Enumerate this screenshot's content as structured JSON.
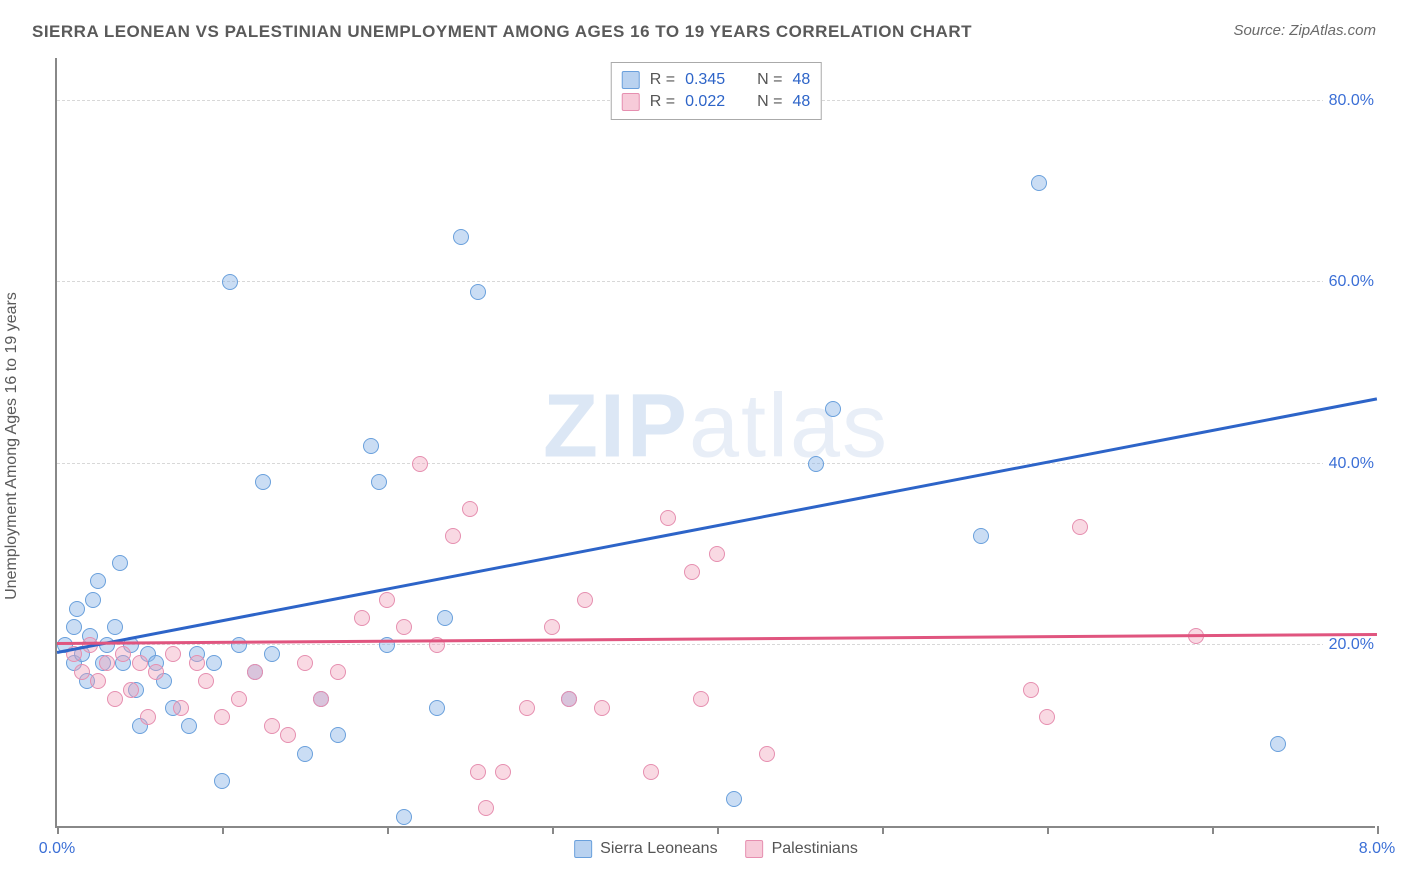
{
  "title": "SIERRA LEONEAN VS PALESTINIAN UNEMPLOYMENT AMONG AGES 16 TO 19 YEARS CORRELATION CHART",
  "source": "Source: ZipAtlas.com",
  "ylabel": "Unemployment Among Ages 16 to 19 years",
  "watermark": {
    "bold": "ZIP",
    "rest": "atlas"
  },
  "chart": {
    "type": "scatter",
    "xlim": [
      0,
      8
    ],
    "ylim": [
      0,
      85
    ],
    "xticks": [
      0,
      1,
      2,
      3,
      4,
      5,
      6,
      7,
      8
    ],
    "xtick_labels_shown": {
      "0": "0.0%",
      "8": "8.0%"
    },
    "yticks": [
      20,
      40,
      60,
      80
    ],
    "ytick_labels": [
      "20.0%",
      "40.0%",
      "60.0%",
      "80.0%"
    ],
    "grid_color": "#d8d8d8",
    "axis_color": "#888888",
    "background_color": "#ffffff",
    "marker_radius": 8,
    "marker_opacity": 0.45
  },
  "series": [
    {
      "name": "Sierra Leoneans",
      "color_fill": "#8ab4e6",
      "color_stroke": "#6aa0dc",
      "trend_color": "#2d64c8",
      "R": "0.345",
      "N": "48",
      "trend": {
        "x0": 0,
        "y0": 19,
        "x1": 8,
        "y1": 47
      },
      "points": [
        [
          0.05,
          20
        ],
        [
          0.1,
          22
        ],
        [
          0.1,
          18
        ],
        [
          0.12,
          24
        ],
        [
          0.15,
          19
        ],
        [
          0.18,
          16
        ],
        [
          0.2,
          21
        ],
        [
          0.22,
          25
        ],
        [
          0.25,
          27
        ],
        [
          0.28,
          18
        ],
        [
          0.3,
          20
        ],
        [
          0.35,
          22
        ],
        [
          0.38,
          29
        ],
        [
          0.4,
          18
        ],
        [
          0.45,
          20
        ],
        [
          0.48,
          15
        ],
        [
          0.5,
          11
        ],
        [
          0.55,
          19
        ],
        [
          0.6,
          18
        ],
        [
          0.65,
          16
        ],
        [
          0.7,
          13
        ],
        [
          0.8,
          11
        ],
        [
          0.85,
          19
        ],
        [
          0.95,
          18
        ],
        [
          1.0,
          5
        ],
        [
          1.05,
          60
        ],
        [
          1.1,
          20
        ],
        [
          1.2,
          17
        ],
        [
          1.25,
          38
        ],
        [
          1.3,
          19
        ],
        [
          1.5,
          8
        ],
        [
          1.6,
          14
        ],
        [
          1.7,
          10
        ],
        [
          1.9,
          42
        ],
        [
          1.95,
          38
        ],
        [
          2.0,
          20
        ],
        [
          2.1,
          1
        ],
        [
          2.3,
          13
        ],
        [
          2.35,
          23
        ],
        [
          2.45,
          65
        ],
        [
          2.55,
          59
        ],
        [
          3.1,
          14
        ],
        [
          4.1,
          3
        ],
        [
          4.6,
          40
        ],
        [
          4.7,
          46
        ],
        [
          5.6,
          32
        ],
        [
          5.95,
          71
        ],
        [
          7.4,
          9
        ]
      ]
    },
    {
      "name": "Palestinians",
      "color_fill": "#f0a0b9",
      "color_stroke": "#e68fb0",
      "trend_color": "#e0557f",
      "R": "0.022",
      "N": "48",
      "trend": {
        "x0": 0,
        "y0": 20,
        "x1": 8,
        "y1": 21
      },
      "points": [
        [
          0.1,
          19
        ],
        [
          0.15,
          17
        ],
        [
          0.2,
          20
        ],
        [
          0.25,
          16
        ],
        [
          0.3,
          18
        ],
        [
          0.35,
          14
        ],
        [
          0.4,
          19
        ],
        [
          0.45,
          15
        ],
        [
          0.5,
          18
        ],
        [
          0.55,
          12
        ],
        [
          0.6,
          17
        ],
        [
          0.7,
          19
        ],
        [
          0.75,
          13
        ],
        [
          0.85,
          18
        ],
        [
          0.9,
          16
        ],
        [
          1.0,
          12
        ],
        [
          1.1,
          14
        ],
        [
          1.2,
          17
        ],
        [
          1.3,
          11
        ],
        [
          1.4,
          10
        ],
        [
          1.5,
          18
        ],
        [
          1.6,
          14
        ],
        [
          1.7,
          17
        ],
        [
          1.85,
          23
        ],
        [
          2.0,
          25
        ],
        [
          2.1,
          22
        ],
        [
          2.2,
          40
        ],
        [
          2.3,
          20
        ],
        [
          2.4,
          32
        ],
        [
          2.5,
          35
        ],
        [
          2.55,
          6
        ],
        [
          2.6,
          2
        ],
        [
          2.7,
          6
        ],
        [
          2.85,
          13
        ],
        [
          3.0,
          22
        ],
        [
          3.1,
          14
        ],
        [
          3.2,
          25
        ],
        [
          3.3,
          13
        ],
        [
          3.6,
          6
        ],
        [
          3.7,
          34
        ],
        [
          3.85,
          28
        ],
        [
          3.9,
          14
        ],
        [
          4.0,
          30
        ],
        [
          4.3,
          8
        ],
        [
          5.9,
          15
        ],
        [
          6.0,
          12
        ],
        [
          6.2,
          33
        ],
        [
          6.9,
          21
        ]
      ]
    }
  ],
  "legend": {
    "stats_rows": [
      {
        "swatch": "a",
        "R_label": "R =",
        "R_val": "0.345",
        "N_label": "N =",
        "N_val": "48"
      },
      {
        "swatch": "b",
        "R_label": "R =",
        "R_val": "0.022",
        "N_label": "N =",
        "N_val": "48"
      }
    ],
    "bottom": [
      {
        "swatch": "a",
        "label": "Sierra Leoneans"
      },
      {
        "swatch": "b",
        "label": "Palestinians"
      }
    ]
  }
}
